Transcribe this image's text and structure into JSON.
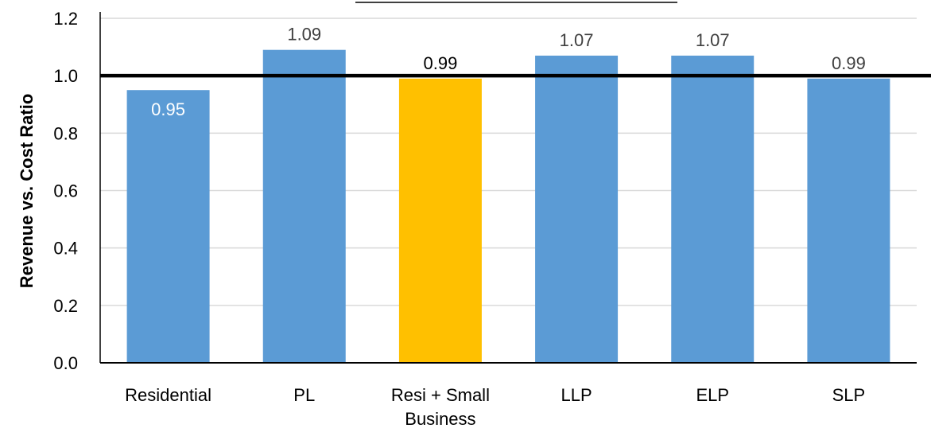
{
  "chart_data": {
    "type": "bar",
    "categories": [
      "Residential",
      "PL",
      "Resi + Small Business",
      "LLP",
      "ELP",
      "SLP"
    ],
    "category_lines": [
      [
        "Residential"
      ],
      [
        "PL"
      ],
      [
        "Resi + Small",
        "Business"
      ],
      [
        "LLP"
      ],
      [
        "ELP"
      ],
      [
        "SLP"
      ]
    ],
    "values": [
      0.95,
      1.09,
      0.99,
      1.07,
      1.07,
      0.99
    ],
    "data_labels": [
      "0.95",
      "1.09",
      "0.99",
      "1.07",
      "1.07",
      "0.99"
    ],
    "highlight_index": 2,
    "ylabel": "Revenue vs. Cost Ratio",
    "ylim": [
      0,
      1.2
    ],
    "yticks": [
      0.0,
      0.2,
      0.4,
      0.6,
      0.8,
      1.0,
      1.2
    ],
    "ytick_labels": [
      "0.0",
      "0.2",
      "0.4",
      "0.6",
      "0.8",
      "1.0",
      "1.2"
    ],
    "reference_line": 1.0,
    "grid": true,
    "colors": {
      "bar": "#5b9bd5",
      "highlight": "#ffc000",
      "reference": "#000000",
      "grid": "#d9d9d9",
      "label_inside": "#ffffff",
      "label_outside": "#404040",
      "label_highlight": "#000000"
    }
  }
}
